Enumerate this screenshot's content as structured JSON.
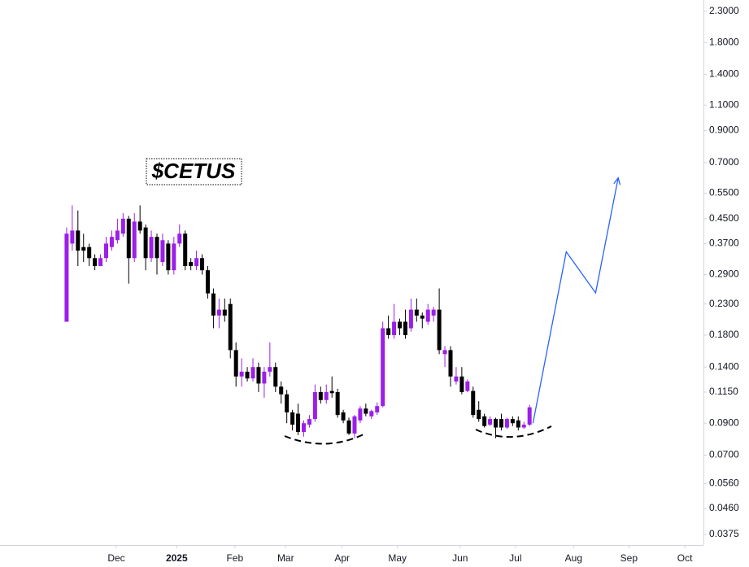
{
  "chart_data": {
    "type": "candlestick",
    "title": "$CETUS",
    "log_scale": true,
    "up_color": "#9c1ee9",
    "down_color": "#000000",
    "x": [
      0,
      1,
      2,
      3,
      4,
      5,
      6,
      7,
      8,
      9,
      10,
      11,
      12,
      13,
      14,
      15,
      16,
      17,
      18,
      19,
      20,
      21,
      22,
      23,
      24,
      25,
      26,
      27,
      28,
      29,
      30,
      31,
      32,
      33,
      34,
      35,
      36,
      37,
      38,
      39,
      40,
      41,
      42,
      43,
      44,
      45,
      46,
      47,
      48,
      49,
      50,
      51,
      52,
      53,
      54,
      55,
      56,
      57,
      58,
      59,
      60,
      61,
      62,
      63,
      64,
      65,
      66,
      67,
      68,
      69,
      70,
      71,
      72,
      73,
      74,
      75,
      76,
      77,
      78,
      79,
      80,
      81,
      82
    ],
    "open": [
      0.2,
      0.37,
      0.41,
      0.36,
      0.36,
      0.33,
      0.31,
      0.33,
      0.36,
      0.38,
      0.4,
      0.45,
      0.33,
      0.44,
      0.42,
      0.33,
      0.39,
      0.32,
      0.37,
      0.3,
      0.37,
      0.4,
      0.32,
      0.31,
      0.33,
      0.3,
      0.25,
      0.21,
      0.22,
      0.23,
      0.16,
      0.13,
      0.135,
      0.128,
      0.14,
      0.123,
      0.135,
      0.14,
      0.12,
      0.113,
      0.098,
      0.097,
      0.084,
      0.089,
      0.093,
      0.115,
      0.108,
      0.116,
      0.115,
      0.098,
      0.092,
      0.083,
      0.092,
      0.101,
      0.095,
      0.098,
      0.103,
      0.19,
      0.18,
      0.2,
      0.2,
      0.19,
      0.22,
      0.21,
      0.2,
      0.21,
      0.22,
      0.155,
      0.16,
      0.125,
      0.13,
      0.116,
      0.116,
      0.1,
      0.095,
      0.089,
      0.093,
      0.093,
      0.087,
      0.093,
      0.092,
      0.087,
      0.089
    ],
    "high": [
      0.42,
      0.5,
      0.48,
      0.4,
      0.37,
      0.34,
      0.34,
      0.39,
      0.41,
      0.45,
      0.47,
      0.46,
      0.47,
      0.5,
      0.43,
      0.41,
      0.4,
      0.4,
      0.38,
      0.39,
      0.43,
      0.41,
      0.33,
      0.35,
      0.34,
      0.31,
      0.26,
      0.24,
      0.24,
      0.24,
      0.17,
      0.15,
      0.14,
      0.15,
      0.145,
      0.14,
      0.17,
      0.145,
      0.125,
      0.117,
      0.1,
      0.105,
      0.092,
      0.096,
      0.122,
      0.12,
      0.122,
      0.13,
      0.118,
      0.1,
      0.094,
      0.096,
      0.103,
      0.105,
      0.1,
      0.106,
      0.2,
      0.21,
      0.23,
      0.205,
      0.22,
      0.24,
      0.24,
      0.215,
      0.23,
      0.225,
      0.26,
      0.165,
      0.165,
      0.14,
      0.14,
      0.127,
      0.12,
      0.107,
      0.097,
      0.095,
      0.094,
      0.097,
      0.094,
      0.095,
      0.095,
      0.091,
      0.104
    ],
    "low": [
      0.2,
      0.35,
      0.31,
      0.32,
      0.31,
      0.3,
      0.31,
      0.32,
      0.35,
      0.37,
      0.39,
      0.27,
      0.32,
      0.4,
      0.3,
      0.32,
      0.29,
      0.31,
      0.29,
      0.29,
      0.36,
      0.3,
      0.3,
      0.3,
      0.29,
      0.24,
      0.19,
      0.19,
      0.2,
      0.15,
      0.12,
      0.12,
      0.125,
      0.125,
      0.115,
      0.11,
      0.13,
      0.115,
      0.105,
      0.09,
      0.085,
      0.082,
      0.081,
      0.087,
      0.091,
      0.105,
      0.105,
      0.11,
      0.094,
      0.09,
      0.082,
      0.08,
      0.09,
      0.095,
      0.093,
      0.096,
      0.102,
      0.175,
      0.175,
      0.18,
      0.175,
      0.185,
      0.2,
      0.19,
      0.195,
      0.2,
      0.155,
      0.14,
      0.12,
      0.122,
      0.113,
      0.115,
      0.094,
      0.091,
      0.087,
      0.088,
      0.08,
      0.085,
      0.086,
      0.088,
      0.085,
      0.086,
      0.088
    ],
    "close": [
      0.4,
      0.41,
      0.35,
      0.35,
      0.33,
      0.31,
      0.33,
      0.37,
      0.39,
      0.41,
      0.45,
      0.33,
      0.44,
      0.41,
      0.33,
      0.39,
      0.33,
      0.38,
      0.3,
      0.37,
      0.4,
      0.31,
      0.31,
      0.33,
      0.3,
      0.25,
      0.21,
      0.22,
      0.21,
      0.16,
      0.13,
      0.135,
      0.128,
      0.14,
      0.123,
      0.135,
      0.14,
      0.12,
      0.113,
      0.098,
      0.089,
      0.084,
      0.09,
      0.093,
      0.115,
      0.108,
      0.115,
      0.114,
      0.096,
      0.092,
      0.083,
      0.095,
      0.101,
      0.097,
      0.099,
      0.103,
      0.19,
      0.18,
      0.2,
      0.19,
      0.18,
      0.22,
      0.21,
      0.205,
      0.22,
      0.22,
      0.16,
      0.16,
      0.13,
      0.13,
      0.115,
      0.125,
      0.096,
      0.093,
      0.088,
      0.093,
      0.087,
      0.087,
      0.093,
      0.09,
      0.087,
      0.089,
      0.102
    ],
    "projection": {
      "color": "#2962ff",
      "x": [
        82.6,
        88.5,
        93.7,
        97.7
      ],
      "values": [
        0.09,
        0.347,
        0.251,
        0.621
      ]
    },
    "xlim": [
      -11.8,
      112.8
    ],
    "xticks": [
      {
        "value": 8.8,
        "label": "Dec"
      },
      {
        "value": 19.5,
        "label": "2025"
      },
      {
        "value": 29.8,
        "label": "Feb"
      },
      {
        "value": 38.8,
        "label": "Mar"
      },
      {
        "value": 48.8,
        "label": "Apr"
      },
      {
        "value": 58.6,
        "label": "May"
      },
      {
        "value": 69.7,
        "label": "Jun"
      },
      {
        "value": 79.5,
        "label": "Jul"
      },
      {
        "value": 89.8,
        "label": "Aug"
      },
      {
        "value": 99.6,
        "label": "Sep"
      },
      {
        "value": 109.5,
        "label": "Oct"
      }
    ],
    "ylim": [
      0.0345,
      2.516
    ],
    "yticks": [
      {
        "value": 2.3,
        "label": "2.3000"
      },
      {
        "value": 1.8,
        "label": "1.8000"
      },
      {
        "value": 1.4,
        "label": "1.4000"
      },
      {
        "value": 1.1,
        "label": "1.1000"
      },
      {
        "value": 0.9,
        "label": "0.9000"
      },
      {
        "value": 0.7,
        "label": "0.7000"
      },
      {
        "value": 0.55,
        "label": "0.5500"
      },
      {
        "value": 0.45,
        "label": "0.4500"
      },
      {
        "value": 0.37,
        "label": "0.3700"
      },
      {
        "value": 0.29,
        "label": "0.2900"
      },
      {
        "value": 0.23,
        "label": "0.2300"
      },
      {
        "value": 0.18,
        "label": "0.1800"
      },
      {
        "value": 0.14,
        "label": "0.1400"
      },
      {
        "value": 0.115,
        "label": "0.1150"
      },
      {
        "value": 0.09,
        "label": "0.0900"
      },
      {
        "value": 0.07,
        "label": "0.0700"
      },
      {
        "value": 0.056,
        "label": "0.0560"
      },
      {
        "value": 0.046,
        "label": "0.0460"
      },
      {
        "value": 0.0375,
        "label": "0.0375"
      }
    ]
  }
}
